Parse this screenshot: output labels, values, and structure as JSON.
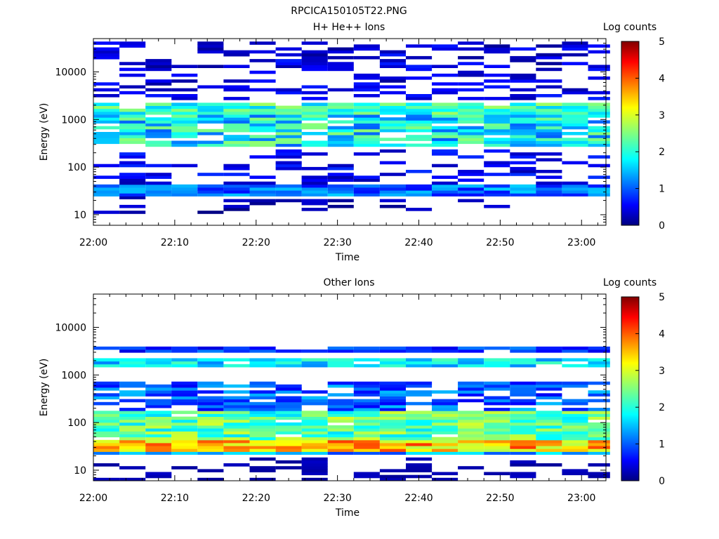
{
  "figure": {
    "title": "RPCICA150105T22.PNG"
  },
  "chart_data": [
    {
      "type": "heatmap",
      "title": "H+ He++ Ions",
      "xlabel": "Time",
      "ylabel": "Energy (eV)",
      "x_tick_labels": [
        "22:00",
        "22:10",
        "22:20",
        "22:30",
        "22:40",
        "22:50",
        "23:00"
      ],
      "x_ticks_min": [
        0,
        10,
        20,
        30,
        40,
        50,
        60
      ],
      "xlim_min": [
        0,
        63
      ],
      "y_tick_labels": [
        "10",
        "100",
        "1000",
        "10000"
      ],
      "y_ticks": [
        10,
        100,
        1000,
        10000
      ],
      "ylim": [
        6,
        50000
      ],
      "yscale": "log",
      "colorbar": {
        "label": "Log counts",
        "ticks": [
          "0",
          "1",
          "2",
          "3",
          "4",
          "5"
        ],
        "range": [
          0,
          5
        ]
      },
      "time_bins_min": [
        0,
        3.2,
        6.4,
        9.6,
        12.8,
        16,
        19.2,
        22.4,
        25.6,
        28.8,
        32,
        35.2,
        38.4,
        41.6,
        44.8,
        48,
        51.2,
        54.4,
        57.6,
        60.8
      ],
      "bands": [
        {
          "e_lo": 25,
          "e_hi": 45,
          "mean": 1.1,
          "var": 0.5,
          "fill": 1.0
        },
        {
          "e_lo": 260,
          "e_hi": 1250,
          "mean": 1.8,
          "var": 0.8,
          "fill": 0.85
        },
        {
          "e_lo": 1300,
          "e_hi": 2400,
          "mean": 2.1,
          "var": 0.6,
          "fill": 0.95
        },
        {
          "e_lo": 45,
          "e_hi": 250,
          "mean": 0.5,
          "var": 0.3,
          "fill": 0.35
        },
        {
          "e_lo": 2500,
          "e_hi": 45000,
          "mean": 0.4,
          "var": 0.3,
          "fill": 0.4
        },
        {
          "e_lo": 10,
          "e_hi": 24,
          "mean": 0.2,
          "var": 0.2,
          "fill": 0.15
        }
      ]
    },
    {
      "type": "heatmap",
      "title": "Other Ions",
      "xlabel": "Time",
      "ylabel": "Energy (eV)",
      "x_tick_labels": [
        "22:00",
        "22:10",
        "22:20",
        "22:30",
        "22:40",
        "22:50",
        "23:00"
      ],
      "x_ticks_min": [
        0,
        10,
        20,
        30,
        40,
        50,
        60
      ],
      "xlim_min": [
        0,
        63
      ],
      "y_tick_labels": [
        "10",
        "100",
        "1000",
        "10000"
      ],
      "y_ticks": [
        10,
        100,
        1000,
        10000
      ],
      "ylim": [
        6,
        50000
      ],
      "yscale": "log",
      "colorbar": {
        "label": "Log counts",
        "ticks": [
          "0",
          "1",
          "2",
          "3",
          "4",
          "5"
        ],
        "range": [
          0,
          5
        ]
      },
      "time_bins_min": [
        0,
        3.2,
        6.4,
        9.6,
        12.8,
        16,
        19.2,
        22.4,
        25.6,
        28.8,
        32,
        35.2,
        38.4,
        41.6,
        44.8,
        48,
        51.2,
        54.4,
        57.6,
        60.8
      ],
      "bands": [
        {
          "e_lo": 25,
          "e_hi": 45,
          "mean": 3.5,
          "var": 0.7,
          "fill": 1.0
        },
        {
          "e_lo": 45,
          "e_hi": 180,
          "mean": 2.3,
          "var": 0.7,
          "fill": 0.95
        },
        {
          "e_lo": 180,
          "e_hi": 700,
          "mean": 1.0,
          "var": 0.5,
          "fill": 0.7
        },
        {
          "e_lo": 1500,
          "e_hi": 2300,
          "mean": 1.7,
          "var": 0.5,
          "fill": 0.9
        },
        {
          "e_lo": 3000,
          "e_hi": 4200,
          "mean": 0.8,
          "var": 0.4,
          "fill": 0.9
        },
        {
          "e_lo": 20,
          "e_hi": 25,
          "mean": 1.3,
          "var": 0.5,
          "fill": 1.0
        },
        {
          "e_lo": 6,
          "e_hi": 18,
          "mean": 0.2,
          "var": 0.1,
          "fill": 0.3
        }
      ]
    }
  ]
}
